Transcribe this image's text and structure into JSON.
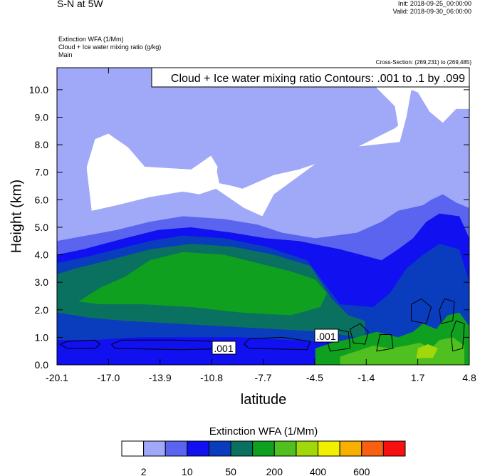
{
  "header": {
    "title": "S-N at 5W",
    "init": "Init: 2018-09-25_00:00:00",
    "valid": "Valid: 2018-09-30_06:00:00",
    "fields": [
      "Extinction WFA   (1/Mm)",
      "Cloud + Ice water mixing ratio   (g/kg)",
      "Main"
    ],
    "cross_section": "Cross-Section: (269,231) to (269,485)"
  },
  "chart_data": {
    "type": "heatmap",
    "title": "Cloud + Ice water mixing ratio Contours: .001 to .1 by .099",
    "xlabel": "latitude",
    "ylabel": "Height (km)",
    "x_ticks": [
      "-20.1",
      "-17.0",
      "-13.9",
      "-10.8",
      "-7.7",
      "-4.5",
      "-1.4",
      "1.7",
      "4.8"
    ],
    "xlim": [
      -20.1,
      4.8
    ],
    "y_ticks": [
      "0.0",
      "1.0",
      "2.0",
      "3.0",
      "4.0",
      "5.0",
      "6.0",
      "7.0",
      "8.0",
      "9.0",
      "10.0"
    ],
    "ylim": [
      0,
      10.8
    ],
    "contour_labels": [
      ".001",
      ".001"
    ],
    "colorbar": {
      "title": "Extinction WFA  (1/Mm)",
      "labels": [
        "2",
        "10",
        "50",
        "200",
        "400",
        "600"
      ],
      "colors": [
        "#ffffff",
        "#a0a8f8",
        "#5a64ee",
        "#1010f0",
        "#0a3cbe",
        "#0a7060",
        "#10a020",
        "#50c020",
        "#a0d80a",
        "#f0f000",
        "#f8b000",
        "#f86010",
        "#f81010"
      ]
    },
    "regions": [
      {
        "level": 1,
        "poly": [
          [
            -20.1,
            0
          ],
          [
            4.8,
            0
          ],
          [
            4.8,
            9.3
          ],
          [
            4.0,
            9.3
          ],
          [
            3.2,
            8.8
          ],
          [
            2.4,
            9.2
          ],
          [
            1.7,
            9.9
          ],
          [
            1.3,
            10.0
          ],
          [
            1.0,
            9.0
          ],
          [
            0.6,
            8.1
          ],
          [
            -2.5,
            7.9
          ],
          [
            -4.5,
            7.3
          ],
          [
            -7.0,
            6.2
          ],
          [
            -7.7,
            5.4
          ],
          [
            -8.8,
            5.7
          ],
          [
            -10.5,
            6.4
          ],
          [
            -11.5,
            6.2
          ],
          [
            -12.5,
            6.3
          ],
          [
            -14.5,
            6.1
          ],
          [
            -16.5,
            5.8
          ],
          [
            -18.0,
            5.6
          ],
          [
            -18.3,
            7.2
          ],
          [
            -17.8,
            8.2
          ],
          [
            -17.0,
            8.4
          ],
          [
            -15.8,
            7.9
          ],
          [
            -14.8,
            7.2
          ],
          [
            -12.0,
            7.1
          ],
          [
            -10.5,
            7.2
          ],
          [
            -10.3,
            6.6
          ],
          [
            -9.5,
            6.5
          ],
          [
            -8.9,
            6.4
          ],
          [
            -7.0,
            6.9
          ],
          [
            -5.5,
            7.1
          ],
          [
            -3.0,
            7.6
          ],
          [
            0.3,
            8.6
          ],
          [
            0.5,
            8.7
          ],
          [
            0.3,
            9.4
          ],
          [
            -2.0,
            10.8
          ],
          [
            -20.1,
            10.8
          ]
        ]
      },
      {
        "level": 0,
        "poly": [
          [
            -18.3,
            7.1
          ],
          [
            -17.8,
            8.2
          ],
          [
            -17.0,
            8.4
          ],
          [
            -15.8,
            7.9
          ],
          [
            -14.8,
            7.2
          ],
          [
            -12.0,
            7.1
          ],
          [
            -10.8,
            7.6
          ],
          [
            -10.4,
            7.2
          ],
          [
            -10.6,
            6.4
          ],
          [
            -11.5,
            6.2
          ],
          [
            -12.5,
            6.3
          ],
          [
            -14.5,
            6.1
          ],
          [
            -16.5,
            5.8
          ],
          [
            -18.0,
            5.6
          ]
        ]
      },
      {
        "level": 2,
        "poly": [
          [
            -20.1,
            0
          ],
          [
            4.8,
            0
          ],
          [
            4.8,
            5.7
          ],
          [
            4.0,
            5.9
          ],
          [
            3.2,
            6.2
          ],
          [
            2.5,
            6.0
          ],
          [
            2.0,
            5.8
          ],
          [
            0.5,
            5.6
          ],
          [
            -0.5,
            5.2
          ],
          [
            -2.0,
            4.8
          ],
          [
            -4.5,
            4.6
          ],
          [
            -6.5,
            4.8
          ],
          [
            -8.0,
            5.1
          ],
          [
            -10.0,
            5.3
          ],
          [
            -12.5,
            5.4
          ],
          [
            -14.5,
            5.2
          ],
          [
            -16.5,
            4.9
          ],
          [
            -18.3,
            4.7
          ],
          [
            -20.1,
            4.5
          ]
        ]
      },
      {
        "level": 3,
        "poly": [
          [
            -20.1,
            0
          ],
          [
            4.8,
            0
          ],
          [
            4.8,
            4.6
          ],
          [
            4.2,
            5.4
          ],
          [
            3.0,
            5.5
          ],
          [
            2.2,
            5.2
          ],
          [
            1.4,
            4.6
          ],
          [
            0.5,
            4.2
          ],
          [
            -0.5,
            3.8
          ],
          [
            -3.0,
            4.2
          ],
          [
            -5.5,
            4.5
          ],
          [
            -7.5,
            4.6
          ],
          [
            -9.5,
            4.8
          ],
          [
            -12.0,
            5.0
          ],
          [
            -14.0,
            4.9
          ],
          [
            -16.0,
            4.6
          ],
          [
            -18.5,
            4.2
          ],
          [
            -20.1,
            4.0
          ]
        ]
      },
      {
        "level": 4,
        "poly": [
          [
            -20.1,
            0
          ],
          [
            4.8,
            0
          ],
          [
            4.8,
            3.0
          ],
          [
            4.2,
            4.2
          ],
          [
            3.0,
            4.4
          ],
          [
            2.0,
            4.0
          ],
          [
            1.0,
            3.5
          ],
          [
            0.0,
            2.6
          ],
          [
            -1.0,
            2.1
          ],
          [
            -3.0,
            2.2
          ],
          [
            -5.0,
            3.8
          ],
          [
            -7.5,
            4.3
          ],
          [
            -10.0,
            4.6
          ],
          [
            -12.5,
            4.7
          ],
          [
            -14.5,
            4.5
          ],
          [
            -16.5,
            4.2
          ],
          [
            -18.5,
            3.9
          ],
          [
            -20.1,
            3.7
          ]
        ]
      },
      {
        "level": 5,
        "poly": [
          [
            -20.1,
            0
          ],
          [
            -1.5,
            0
          ],
          [
            -1.5,
            1.6
          ],
          [
            -2.5,
            1.8
          ],
          [
            -3.5,
            2.4
          ],
          [
            -4.8,
            3.6
          ],
          [
            -7.0,
            4.0
          ],
          [
            -9.5,
            4.3
          ],
          [
            -12.0,
            4.4
          ],
          [
            -14.5,
            4.2
          ],
          [
            -17.0,
            3.8
          ],
          [
            -19.0,
            3.5
          ],
          [
            -20.1,
            3.3
          ]
        ]
      },
      {
        "level": 6,
        "poly": [
          [
            -18.8,
            2.3
          ],
          [
            -17.5,
            2.8
          ],
          [
            -16.0,
            3.2
          ],
          [
            -14.5,
            3.8
          ],
          [
            -12.5,
            4.1
          ],
          [
            -10.0,
            4.0
          ],
          [
            -8.0,
            3.7
          ],
          [
            -6.0,
            3.4
          ],
          [
            -4.5,
            3.1
          ],
          [
            -3.8,
            2.6
          ],
          [
            -4.2,
            2.1
          ],
          [
            -6.0,
            1.8
          ],
          [
            -9.0,
            1.9
          ],
          [
            -12.0,
            2.1
          ],
          [
            -15.0,
            2.2
          ],
          [
            -17.5,
            2.2
          ]
        ]
      },
      {
        "level": 4,
        "poly": [
          [
            -20.1,
            0
          ],
          [
            0.0,
            0
          ],
          [
            0.0,
            0.8
          ],
          [
            -2.0,
            1.0
          ],
          [
            -4.0,
            1.2
          ],
          [
            -7.0,
            1.3
          ],
          [
            -10.0,
            1.4
          ],
          [
            -13.0,
            1.5
          ],
          [
            -16.0,
            1.6
          ],
          [
            -18.0,
            1.7
          ],
          [
            -20.1,
            1.9
          ]
        ]
      },
      {
        "level": 3,
        "poly": [
          [
            -20.1,
            0
          ],
          [
            -1.2,
            0
          ],
          [
            -1.2,
            0.7
          ],
          [
            -3.0,
            0.8
          ],
          [
            -6.0,
            0.9
          ],
          [
            -9.0,
            1.0
          ],
          [
            -12.0,
            1.0
          ],
          [
            -15.0,
            1.0
          ],
          [
            -18.0,
            0.9
          ],
          [
            -20.1,
            0.9
          ]
        ]
      },
      {
        "level": 6,
        "poly": [
          [
            -4.5,
            0
          ],
          [
            4.8,
            0
          ],
          [
            4.8,
            1.4
          ],
          [
            4.2,
            1.9
          ],
          [
            3.5,
            1.8
          ],
          [
            2.8,
            1.3
          ],
          [
            2.0,
            1.5
          ],
          [
            1.4,
            1.2
          ],
          [
            0.5,
            1.0
          ],
          [
            -0.8,
            1.2
          ],
          [
            -2.0,
            1.0
          ],
          [
            -3.5,
            0.8
          ],
          [
            -4.5,
            0.6
          ]
        ]
      },
      {
        "level": 7,
        "poly": [
          [
            -3.0,
            0
          ],
          [
            4.5,
            0
          ],
          [
            4.5,
            0.7
          ],
          [
            3.8,
            1.0
          ],
          [
            3.0,
            0.9
          ],
          [
            2.5,
            0.6
          ],
          [
            1.8,
            0.8
          ],
          [
            1.0,
            0.7
          ],
          [
            0.0,
            0.6
          ],
          [
            -1.0,
            0.7
          ],
          [
            -2.0,
            0.5
          ],
          [
            -3.0,
            0.3
          ]
        ]
      },
      {
        "level": 8,
        "poly": [
          [
            1.6,
            0.25
          ],
          [
            2.6,
            0.25
          ],
          [
            2.9,
            0.6
          ],
          [
            2.3,
            0.75
          ],
          [
            1.7,
            0.6
          ]
        ]
      }
    ],
    "contours": [
      {
        "path": [
          [
            -19.5,
            0.6
          ],
          [
            -17.8,
            0.6
          ],
          [
            -17.5,
            0.75
          ],
          [
            -17.8,
            0.9
          ],
          [
            -19.5,
            0.85
          ],
          [
            -19.9,
            0.75
          ]
        ],
        "close": true
      },
      {
        "path": [
          [
            -16.6,
            0.6
          ],
          [
            -12.5,
            0.55
          ],
          [
            -9.5,
            0.6
          ],
          [
            -10.5,
            0.85
          ],
          [
            -13.0,
            0.9
          ],
          [
            -16.2,
            0.9
          ],
          [
            -16.8,
            0.75
          ]
        ],
        "close": true
      },
      {
        "path": [
          [
            -8.5,
            0.6
          ],
          [
            -5.0,
            0.55
          ],
          [
            -4.8,
            0.85
          ],
          [
            -6.5,
            1.0
          ],
          [
            -8.5,
            0.95
          ],
          [
            -8.8,
            0.75
          ]
        ],
        "close": true
      },
      {
        "path": [
          [
            -3.6,
            0.5
          ],
          [
            -2.4,
            0.6
          ],
          [
            -2.5,
            1.2
          ],
          [
            -3.3,
            1.3
          ],
          [
            -3.8,
            0.9
          ]
        ],
        "close": true
      },
      {
        "path": [
          [
            -2.2,
            0.8
          ],
          [
            -1.5,
            0.75
          ],
          [
            -1.3,
            1.2
          ],
          [
            -1.8,
            1.5
          ],
          [
            -2.4,
            1.3
          ]
        ],
        "close": true
      },
      {
        "path": [
          [
            1.3,
            1.6
          ],
          [
            2.2,
            1.5
          ],
          [
            2.5,
            2.1
          ],
          [
            1.9,
            2.4
          ],
          [
            1.3,
            2.2
          ]
        ],
        "close": true
      },
      {
        "path": [
          [
            3.1,
            1.5
          ],
          [
            3.8,
            1.6
          ],
          [
            3.9,
            2.3
          ],
          [
            3.3,
            2.4
          ],
          [
            3.0,
            2.0
          ]
        ],
        "close": true
      },
      {
        "path": [
          [
            3.8,
            0.5
          ],
          [
            4.4,
            0.6
          ],
          [
            4.5,
            1.5
          ],
          [
            4.0,
            1.6
          ],
          [
            3.7,
            1.1
          ]
        ],
        "close": true
      },
      {
        "path": [
          [
            -0.8,
            0.5
          ],
          [
            0.2,
            0.6
          ],
          [
            0.1,
            1.1
          ],
          [
            -0.6,
            1.1
          ]
        ],
        "close": true
      }
    ]
  }
}
